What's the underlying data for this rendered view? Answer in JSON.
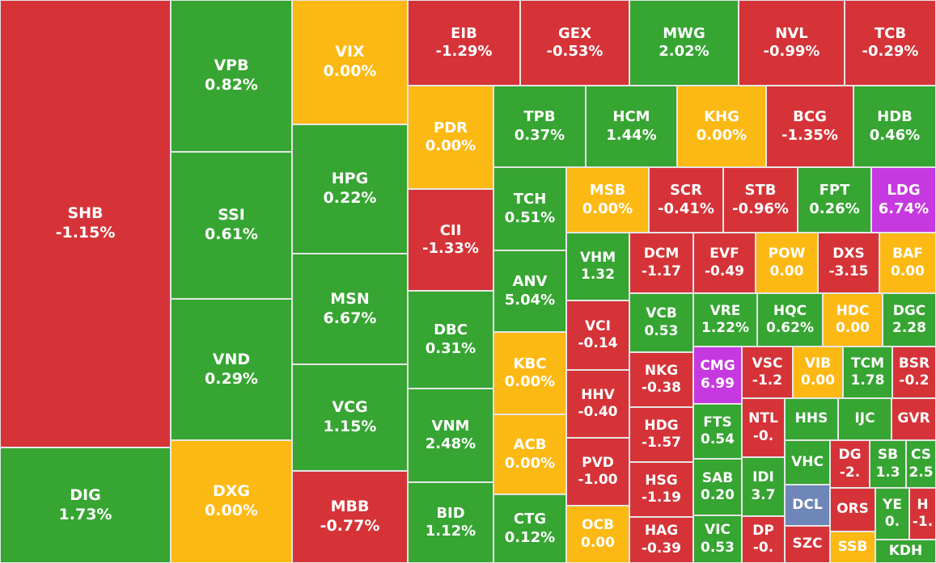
{
  "colors": {
    "red": "#d53338",
    "green": "#36a532",
    "yellow": "#fdb913",
    "purple": "#c639e0",
    "blue": "#6e86b8"
  },
  "chart_data": {
    "type": "treemap",
    "tiles": [
      {
        "ticker": "SHB",
        "change": "-1.15%",
        "color": "red"
      },
      {
        "ticker": "DIG",
        "change": "1.73%",
        "color": "green"
      },
      {
        "ticker": "VPB",
        "change": "0.82%",
        "color": "green"
      },
      {
        "ticker": "SSI",
        "change": "0.61%",
        "color": "green"
      },
      {
        "ticker": "VND",
        "change": "0.29%",
        "color": "green"
      },
      {
        "ticker": "DXG",
        "change": "0.00%",
        "color": "yellow"
      },
      {
        "ticker": "VIX",
        "change": "0.00%",
        "color": "yellow"
      },
      {
        "ticker": "HPG",
        "change": "0.22%",
        "color": "green"
      },
      {
        "ticker": "MSN",
        "change": "6.67%",
        "color": "green"
      },
      {
        "ticker": "VCG",
        "change": "1.15%",
        "color": "green"
      },
      {
        "ticker": "MBB",
        "change": "-0.77%",
        "color": "red"
      },
      {
        "ticker": "EIB",
        "change": "-1.29%",
        "color": "red"
      },
      {
        "ticker": "GEX",
        "change": "-0.53%",
        "color": "red"
      },
      {
        "ticker": "MWG",
        "change": "2.02%",
        "color": "green"
      },
      {
        "ticker": "NVL",
        "change": "-0.99%",
        "color": "red"
      },
      {
        "ticker": "TCB",
        "change": "-0.29%",
        "color": "red"
      },
      {
        "ticker": "PDR",
        "change": "0.00%",
        "color": "yellow"
      },
      {
        "ticker": "CII",
        "change": "-1.33%",
        "color": "red"
      },
      {
        "ticker": "DBC",
        "change": "0.31%",
        "color": "green"
      },
      {
        "ticker": "VNM",
        "change": "2.48%",
        "color": "green"
      },
      {
        "ticker": "BID",
        "change": "1.12%",
        "color": "green"
      },
      {
        "ticker": "TPB",
        "change": "0.37%",
        "color": "green"
      },
      {
        "ticker": "HCM",
        "change": "1.44%",
        "color": "green"
      },
      {
        "ticker": "KHG",
        "change": "0.00%",
        "color": "yellow"
      },
      {
        "ticker": "BCG",
        "change": "-1.35%",
        "color": "red"
      },
      {
        "ticker": "HDB",
        "change": "0.46%",
        "color": "green"
      },
      {
        "ticker": "TCH",
        "change": "0.51%",
        "color": "green"
      },
      {
        "ticker": "ANV",
        "change": "5.04%",
        "color": "green"
      },
      {
        "ticker": "KBC",
        "change": "0.00%",
        "color": "yellow"
      },
      {
        "ticker": "ACB",
        "change": "0.00%",
        "color": "yellow"
      },
      {
        "ticker": "CTG",
        "change": "0.12%",
        "color": "green"
      },
      {
        "ticker": "MSB",
        "change": "0.00%",
        "color": "yellow"
      },
      {
        "ticker": "SCR",
        "change": "-0.41%",
        "color": "red"
      },
      {
        "ticker": "STB",
        "change": "-0.96%",
        "color": "red"
      },
      {
        "ticker": "FPT",
        "change": "0.26%",
        "color": "green"
      },
      {
        "ticker": "LDG",
        "change": "6.74%",
        "color": "purple"
      },
      {
        "ticker": "VHM",
        "change": "1.32",
        "color": "green"
      },
      {
        "ticker": "VCI",
        "change": "-0.14",
        "color": "red"
      },
      {
        "ticker": "HHV",
        "change": "-0.40",
        "color": "red"
      },
      {
        "ticker": "PVD",
        "change": "-1.00",
        "color": "red"
      },
      {
        "ticker": "OCB",
        "change": "0.00",
        "color": "yellow"
      },
      {
        "ticker": "DCM",
        "change": "-1.17",
        "color": "red"
      },
      {
        "ticker": "EVF",
        "change": "-0.49",
        "color": "red"
      },
      {
        "ticker": "POW",
        "change": "0.00",
        "color": "yellow"
      },
      {
        "ticker": "DXS",
        "change": "-3.15",
        "color": "red"
      },
      {
        "ticker": "BAF",
        "change": "0.00",
        "color": "yellow"
      },
      {
        "ticker": "VCB",
        "change": "0.53",
        "color": "green"
      },
      {
        "ticker": "VRE",
        "change": "1.22%",
        "color": "green"
      },
      {
        "ticker": "HQC",
        "change": "0.62%",
        "color": "green"
      },
      {
        "ticker": "HDC",
        "change": "0.00",
        "color": "yellow"
      },
      {
        "ticker": "DGC",
        "change": "2.28",
        "color": "green"
      },
      {
        "ticker": "NKG",
        "change": "-0.38",
        "color": "red"
      },
      {
        "ticker": "HDG",
        "change": "-1.57",
        "color": "red"
      },
      {
        "ticker": "HSG",
        "change": "-1.19",
        "color": "red"
      },
      {
        "ticker": "HAG",
        "change": "-0.39",
        "color": "red"
      },
      {
        "ticker": "CMG",
        "change": "6.99",
        "color": "purple"
      },
      {
        "ticker": "VSC",
        "change": "-1.2",
        "color": "red"
      },
      {
        "ticker": "VIB",
        "change": "0.00",
        "color": "yellow"
      },
      {
        "ticker": "TCM",
        "change": "1.78",
        "color": "green"
      },
      {
        "ticker": "BSR",
        "change": "-0.2",
        "color": "red"
      },
      {
        "ticker": "FTS",
        "change": "0.54",
        "color": "green"
      },
      {
        "ticker": "SAB",
        "change": "0.20",
        "color": "green"
      },
      {
        "ticker": "VIC",
        "change": "0.53",
        "color": "green"
      },
      {
        "ticker": "NTL",
        "change": "-0.",
        "color": "red"
      },
      {
        "ticker": "HHS",
        "change": "",
        "color": "green"
      },
      {
        "ticker": "IJC",
        "change": "",
        "color": "green"
      },
      {
        "ticker": "GVR",
        "change": "",
        "color": "red"
      },
      {
        "ticker": "IDI",
        "change": "3.7",
        "color": "green"
      },
      {
        "ticker": "VHC",
        "change": "",
        "color": "green"
      },
      {
        "ticker": "DG",
        "change": "-2.",
        "color": "red"
      },
      {
        "ticker": "SB",
        "change": "1.3",
        "color": "green"
      },
      {
        "ticker": "CS",
        "change": "2.5",
        "color": "green"
      },
      {
        "ticker": "DP",
        "change": "-0.",
        "color": "red"
      },
      {
        "ticker": "DCL",
        "change": "",
        "color": "blue"
      },
      {
        "ticker": "ORS",
        "change": "",
        "color": "red"
      },
      {
        "ticker": "YE",
        "change": "0.",
        "color": "green"
      },
      {
        "ticker": "H",
        "change": "-1.",
        "color": "red"
      },
      {
        "ticker": "SZC",
        "change": "",
        "color": "red"
      },
      {
        "ticker": "SSB",
        "change": "",
        "color": "yellow"
      },
      {
        "ticker": "KDH",
        "change": "",
        "color": "green"
      }
    ]
  }
}
